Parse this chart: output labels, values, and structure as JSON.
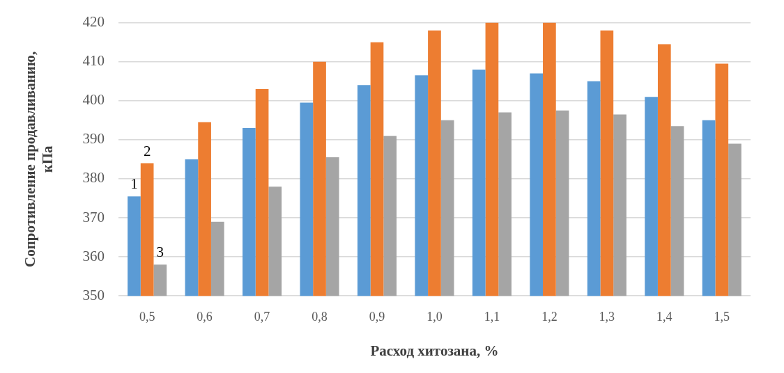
{
  "chart_data": {
    "type": "bar",
    "xlabel": "Расход хитозана, %",
    "ylabel": "Сопротивление продавливанию, кПа",
    "categories": [
      "0,5",
      "0,6",
      "0,7",
      "0,8",
      "0,9",
      "1,0",
      "1,1",
      "1,2",
      "1,3",
      "1,4",
      "1,5"
    ],
    "series": [
      {
        "name": "1",
        "color": "#5b9bd5",
        "values": [
          375.5,
          385,
          393,
          399.5,
          404,
          406.5,
          408,
          407,
          405,
          401,
          395
        ]
      },
      {
        "name": "2",
        "color": "#ed7d31",
        "values": [
          384,
          394.5,
          403,
          410,
          415,
          418,
          420,
          420,
          418,
          414.5,
          409.5
        ]
      },
      {
        "name": "3",
        "color": "#a5a5a5",
        "values": [
          358,
          369,
          378,
          385.5,
          391,
          395,
          397,
          397.5,
          396.5,
          393.5,
          389
        ]
      }
    ],
    "ylim": [
      350,
      420
    ],
    "yticks": [
      350,
      360,
      370,
      380,
      390,
      400,
      410,
      420
    ],
    "grid": "y"
  }
}
